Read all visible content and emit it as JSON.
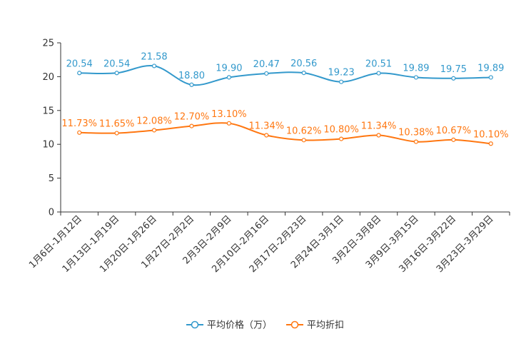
{
  "chart_data": {
    "type": "line",
    "categories": [
      "1月6日-1月12日",
      "1月13日-1月19日",
      "1月20日-1月26日",
      "1月27日-2月2日",
      "2月3日-2月9日",
      "2月10日-2月16日",
      "2月17日-2月23日",
      "2月24日-3月1日",
      "3月2日-3月8日",
      "3月9日-3月15日",
      "3月16日-3月22日",
      "3月23日-3月29日"
    ],
    "ylim": [
      0,
      25
    ],
    "yticks": [
      0,
      5,
      10,
      15,
      20,
      25
    ],
    "series": [
      {
        "name": "平均价格（万）",
        "color": "#3399cc",
        "values": [
          20.54,
          20.54,
          21.58,
          18.8,
          19.9,
          20.47,
          20.56,
          19.23,
          20.51,
          19.89,
          19.75,
          19.89
        ],
        "labels": [
          "20.54",
          "20.54",
          "21.58",
          "18.80",
          "19.90",
          "20.47",
          "20.56",
          "19.23",
          "20.51",
          "19.89",
          "19.75",
          "19.89"
        ]
      },
      {
        "name": "平均折扣",
        "color": "#ff7711",
        "values": [
          11.73,
          11.65,
          12.08,
          12.7,
          13.1,
          11.34,
          10.62,
          10.8,
          11.34,
          10.38,
          10.67,
          10.1
        ],
        "labels": [
          "11.73%",
          "11.65%",
          "12.08%",
          "12.70%",
          "13.10%",
          "11.34%",
          "10.62%",
          "10.80%",
          "11.34%",
          "10.38%",
          "10.67%",
          "10.10%"
        ]
      }
    ],
    "legend_position": "bottom-center"
  }
}
